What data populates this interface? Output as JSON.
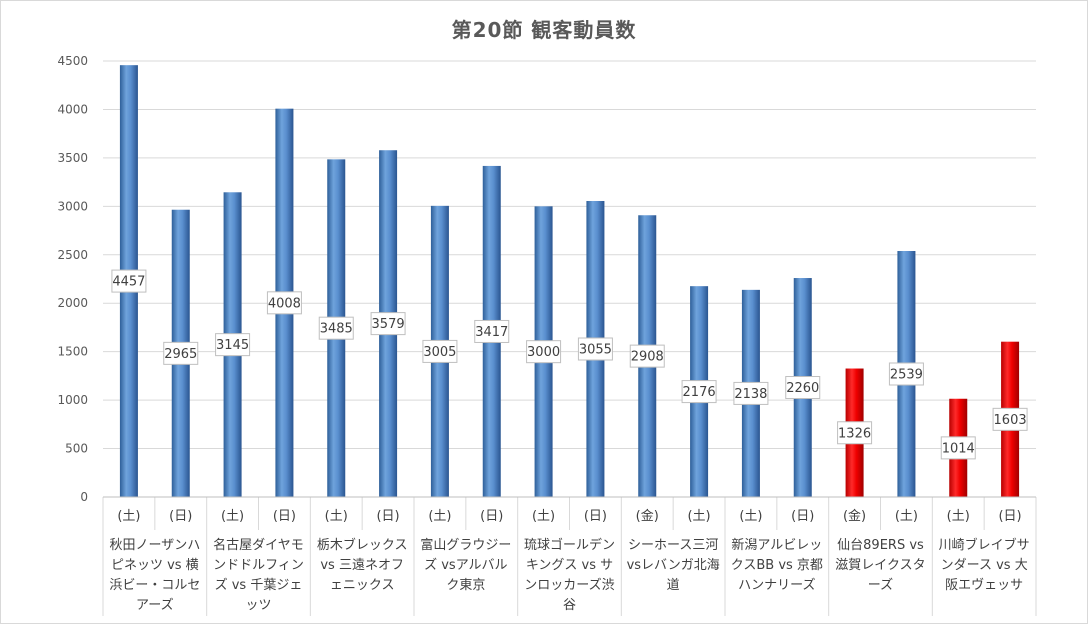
{
  "chart_data": {
    "type": "bar",
    "title": "第20節 観客動員数",
    "ylim": [
      0,
      4500
    ],
    "yticks": [
      0,
      500,
      1000,
      1500,
      2000,
      2500,
      3000,
      3500,
      4000,
      4500
    ],
    "grid": true,
    "legend": "none",
    "colors": {
      "normal": "#4f86c6",
      "highlight": "#ff0000"
    },
    "groups": [
      {
        "matchup": "秋田ノーザンハピネッツ vs 横浜ビー・コルセアーズ",
        "days": [
          "(土)",
          "(日)"
        ],
        "values": [
          4457,
          2965
        ],
        "highlight": [
          false,
          false
        ]
      },
      {
        "matchup": "名古屋ダイヤモンドドルフィンズ vs 千葉ジェッツ",
        "days": [
          "(土)",
          "(日)"
        ],
        "values": [
          3145,
          4008
        ],
        "highlight": [
          false,
          false
        ]
      },
      {
        "matchup": "栃木ブレックス vs 三遠ネオフェニックス",
        "days": [
          "(土)",
          "(日)"
        ],
        "values": [
          3485,
          3579
        ],
        "highlight": [
          false,
          false
        ]
      },
      {
        "matchup": "富山グラウジーズ vsアルバルク東京",
        "days": [
          "(土)",
          "(日)"
        ],
        "values": [
          3005,
          3417
        ],
        "highlight": [
          false,
          false
        ]
      },
      {
        "matchup": "琉球ゴールデンキングス vs サンロッカーズ渋谷",
        "days": [
          "(土)",
          "(日)"
        ],
        "values": [
          3000,
          3055
        ],
        "highlight": [
          false,
          false
        ]
      },
      {
        "matchup": "シーホース三河 vsレバンガ北海道",
        "days": [
          "(金)",
          "(土)"
        ],
        "values": [
          2908,
          2176
        ],
        "highlight": [
          false,
          false
        ]
      },
      {
        "matchup": "新潟アルビレックスBB vs 京都ハンナリーズ",
        "days": [
          "(土)",
          "(日)"
        ],
        "values": [
          2138,
          2260
        ],
        "highlight": [
          false,
          false
        ]
      },
      {
        "matchup": "仙台89ERS vs 滋賀レイクスターズ",
        "days": [
          "(金)",
          "(土)"
        ],
        "values": [
          1326,
          2539
        ],
        "highlight": [
          true,
          false
        ]
      },
      {
        "matchup": "川崎ブレイブサンダース vs 大阪エヴェッサ",
        "days": [
          "(土)",
          "(日)"
        ],
        "values": [
          1014,
          1603
        ],
        "highlight": [
          true,
          true
        ]
      }
    ]
  }
}
